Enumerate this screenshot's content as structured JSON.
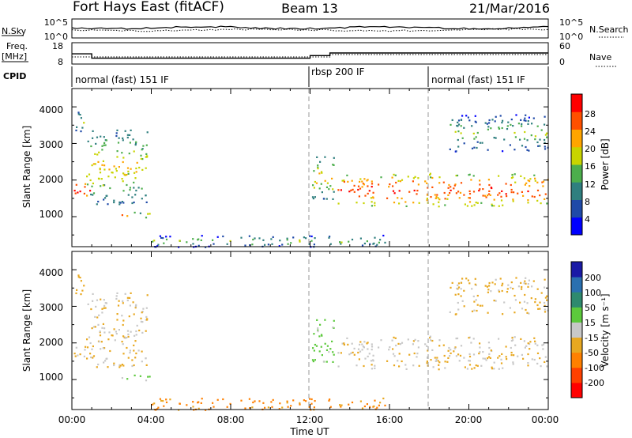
{
  "header": {
    "station": "Fort Hays East (fitACF)",
    "beam": "Beam 13",
    "date": "21/Mar/2016"
  },
  "noise_panel": {
    "left_label": "N.Sky",
    "right_label": "N.Search",
    "left_ticks": [
      "10^5",
      "10^0"
    ],
    "right_ticks": [
      "10^5",
      "10^0"
    ]
  },
  "freq_panel": {
    "left_label_1": "Freq.",
    "left_label_2": "[MHz]",
    "left_ticks": [
      "18",
      "8"
    ],
    "right_label": "Nave",
    "right_ticks": [
      "60",
      "0"
    ]
  },
  "cpid": {
    "label": "CPID",
    "segments": [
      {
        "name": "normal (fast) 151 IF",
        "start_hour": 0,
        "end_hour": 12
      },
      {
        "name": "rbsp 200 IF",
        "start_hour": 12,
        "end_hour": 18
      },
      {
        "name": "normal (fast) 151 IF",
        "start_hour": 18,
        "end_hour": 24
      }
    ]
  },
  "xaxis": {
    "title": "Time UT",
    "ticks": [
      "00:00",
      "04:00",
      "08:00",
      "12:00",
      "16:00",
      "20:00",
      "00:00"
    ]
  },
  "power_panel": {
    "ylabel": "Slant Range [km]",
    "yticks": [
      "1000",
      "2000",
      "3000",
      "4000"
    ],
    "colorbar_label": "Power [dB]",
    "colorbar_ticks": [
      "4",
      "8",
      "12",
      "16",
      "20",
      "24",
      "28"
    ],
    "colors": [
      "#0000ff",
      "#1f4aa8",
      "#2f7f7f",
      "#4cae4c",
      "#c8d400",
      "#ffa500",
      "#ff5000",
      "#ff0000"
    ]
  },
  "velocity_panel": {
    "ylabel": "Slant Range [km]",
    "yticks": [
      "1000",
      "2000",
      "3000",
      "4000"
    ],
    "colorbar_label": "Velocity [m s⁻¹]",
    "colorbar_ticks": [
      "200",
      "100",
      "50",
      "15",
      "-15",
      "-50",
      "-100",
      "-200"
    ],
    "colors": [
      "#1a1aa6",
      "#2a70b0",
      "#2e8a6e",
      "#5cc93c",
      "#c8c8c8",
      "#e8a820",
      "#ff8000",
      "#ff4000",
      "#ff0000"
    ]
  },
  "chart_data": {
    "type": "heatmap",
    "title": "Fort Hays East (fitACF)",
    "x_unit": "hours UT",
    "xlim": [
      0,
      24
    ],
    "y_unit": "km",
    "ylim": [
      180,
      4500
    ],
    "frequency_steps_MHz": [
      {
        "start_hour": 0,
        "end_hour": 1,
        "value": 12.5
      },
      {
        "start_hour": 1,
        "end_hour": 12,
        "value": 10.0
      },
      {
        "start_hour": 12,
        "end_hour": 13,
        "value": 11.5
      },
      {
        "start_hour": 13,
        "end_hour": 24,
        "value": 13.0
      }
    ],
    "echo_regions": [
      {
        "t0": 0.0,
        "t1": 0.9,
        "r0": 1500,
        "r1": 2000,
        "power_dB": 24,
        "velocity": -20
      },
      {
        "t0": 0.0,
        "t1": 0.7,
        "r0": 3300,
        "r1": 3900,
        "power_dB": 10,
        "velocity": -30
      },
      {
        "t0": 0.7,
        "t1": 3.8,
        "r0": 1350,
        "r1": 3400,
        "power_dB": 14,
        "velocity": -15
      },
      {
        "t0": 2.1,
        "t1": 4.0,
        "r0": 980,
        "r1": 1140,
        "power_dB": 17,
        "velocity": 25
      },
      {
        "t0": 4.0,
        "t1": 16.0,
        "r0": 180,
        "r1": 520,
        "power_dB": 9,
        "velocity": -60
      },
      {
        "t0": 12.0,
        "t1": 13.2,
        "r0": 1400,
        "r1": 2700,
        "power_dB": 14,
        "velocity": 30
      },
      {
        "t0": 13.2,
        "t1": 24.0,
        "r0": 1300,
        "r1": 2200,
        "power_dB": 22,
        "velocity": -10
      },
      {
        "t0": 19.0,
        "t1": 24.0,
        "r0": 2800,
        "r1": 3800,
        "power_dB": 10,
        "velocity": -25
      }
    ]
  }
}
